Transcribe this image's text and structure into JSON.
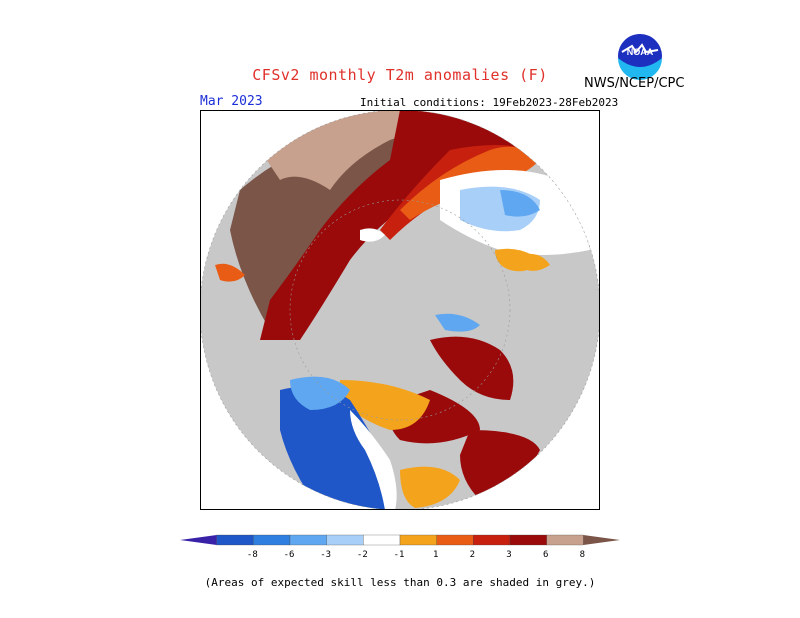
{
  "header": {
    "title": "CFSv2 monthly T2m anomalies (F)",
    "agency": "NWS/NCEP/CPC",
    "logo_text": "NOAA",
    "month": "Mar 2023",
    "initial_conditions": "Initial conditions: 19Feb2023-28Feb2023"
  },
  "colorbar": {
    "ticks": [
      "-8",
      "-6",
      "-3",
      "-2",
      "-1",
      "1",
      "2",
      "3",
      "6",
      "8"
    ],
    "colors": [
      "#3a22a8",
      "#1f56c8",
      "#2f7fe0",
      "#5fa7f0",
      "#a8cff8",
      "#ffffff",
      "#f4a31c",
      "#e95c15",
      "#c8200e",
      "#9a0a0a",
      "#c8a08e",
      "#7a5548"
    ]
  },
  "footnote": "(Areas of expected skill less than 0.3 are shaded in grey.)",
  "map": {
    "projection": "north-polar-stereographic",
    "skill_mask_color": "#c8c8c8",
    "ocean_outside_color": "#ffffff"
  }
}
